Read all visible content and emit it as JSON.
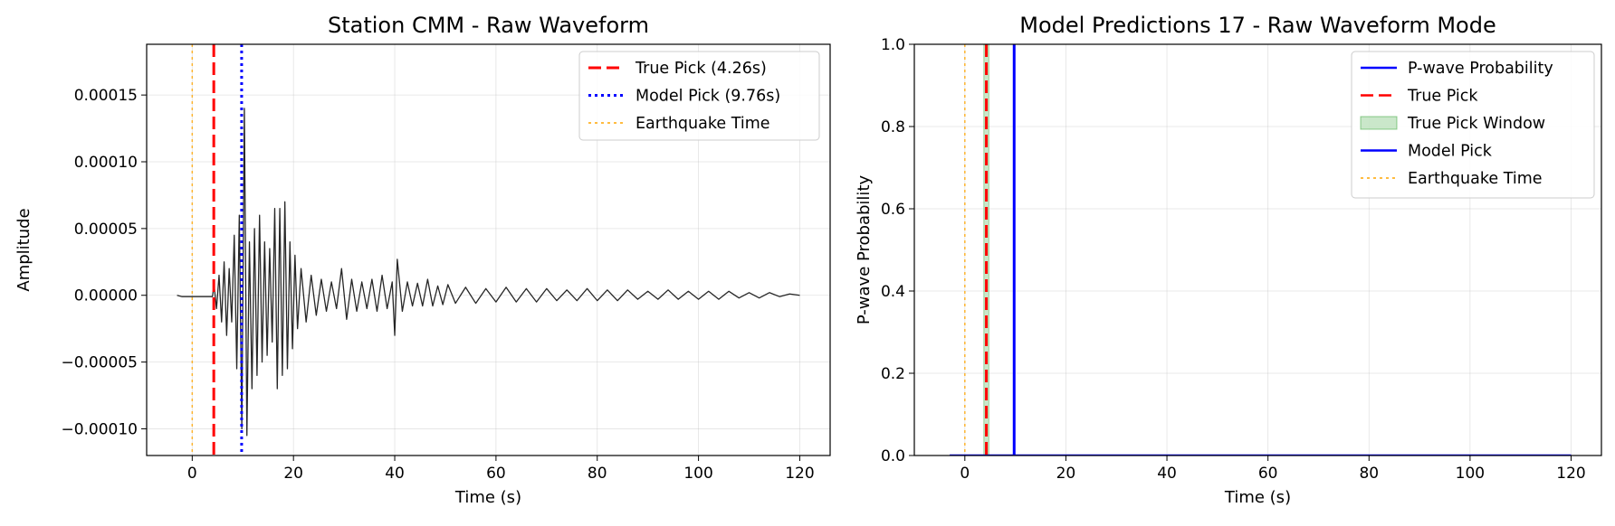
{
  "chart_data": [
    {
      "type": "line",
      "title": "Station CMM - Raw Waveform",
      "xlabel": "Time (s)",
      "ylabel": "Amplitude",
      "xlim": [
        -9,
        126
      ],
      "ylim": [
        -0.00012,
        0.000188
      ],
      "xticks": [
        0,
        20,
        40,
        60,
        80,
        100,
        120
      ],
      "xtick_labels": [
        "0",
        "20",
        "40",
        "60",
        "80",
        "100",
        "120"
      ],
      "yticks": [
        -0.0001,
        -5e-05,
        0,
        5e-05,
        0.0001,
        0.00015
      ],
      "ytick_labels": [
        "−0.00010",
        "−0.00005",
        "0.00000",
        "0.00005",
        "0.00010",
        "0.00015"
      ],
      "grid": true,
      "legend_position": "top-right",
      "series": [
        {
          "name": "",
          "color": "#000000",
          "style": "solid",
          "x": [
            -3,
            -2,
            -1,
            0,
            1,
            2,
            3,
            4,
            4.3,
            4.8,
            5.3,
            5.8,
            6.3,
            6.8,
            7.3,
            7.8,
            8.3,
            8.8,
            9.3,
            9.8,
            10.3,
            10.8,
            11.3,
            11.8,
            12.3,
            12.8,
            13.3,
            13.8,
            14.3,
            14.8,
            15.3,
            15.8,
            16.3,
            16.8,
            17.3,
            17.8,
            18.3,
            18.8,
            19.3,
            19.8,
            20.3,
            20.8,
            21.5,
            22.5,
            23.5,
            24.5,
            25.5,
            26.5,
            27.5,
            28.5,
            29.5,
            30.5,
            31.5,
            32.5,
            33.5,
            34.5,
            35.5,
            36.5,
            37.5,
            38.5,
            39.5,
            40,
            40.5,
            41.5,
            42.5,
            43.5,
            44.5,
            45.5,
            46.5,
            47.5,
            48.5,
            49.5,
            50.5,
            52,
            54,
            56,
            58,
            60,
            62,
            64,
            66,
            68,
            70,
            72,
            74,
            76,
            78,
            80,
            82,
            84,
            86,
            88,
            90,
            92,
            94,
            96,
            98,
            100,
            102,
            104,
            106,
            108,
            110,
            112,
            114,
            116,
            118,
            120
          ],
          "y": [
            0.0,
            -1e-06,
            -1e-06,
            -1e-06,
            -1e-06,
            -1e-06,
            -1e-06,
            -1e-06,
            8e-06,
            -1e-05,
            1.5e-05,
            -2e-05,
            2.5e-05,
            -3e-05,
            2e-05,
            -2e-05,
            4.5e-05,
            -5.5e-05,
            6e-05,
            -0.0001,
            0.00014,
            -0.000105,
            4e-05,
            -7e-05,
            5e-05,
            -6e-05,
            6e-05,
            -5e-05,
            4e-05,
            -4.5e-05,
            3.5e-05,
            -3.5e-05,
            6.5e-05,
            -7e-05,
            6.5e-05,
            -6e-05,
            7e-05,
            -5.5e-05,
            4e-05,
            -4e-05,
            3e-05,
            -2.5e-05,
            2e-05,
            -2e-05,
            1.5e-05,
            -1.5e-05,
            1.2e-05,
            -1.2e-05,
            1e-05,
            -1e-05,
            2e-05,
            -1.8e-05,
            1.2e-05,
            -1.2e-05,
            1e-05,
            -1e-05,
            1.2e-05,
            -1.2e-05,
            1.5e-05,
            -1e-05,
            1e-05,
            -3e-05,
            2.7e-05,
            -1.2e-05,
            1e-05,
            -8e-06,
            9e-06,
            -8e-06,
            1.2e-05,
            -8e-06,
            7e-06,
            -7e-06,
            8e-06,
            -6e-06,
            6e-06,
            -6e-06,
            5e-06,
            -5e-06,
            6e-06,
            -5e-06,
            5e-06,
            -5e-06,
            5e-06,
            -4e-06,
            4e-06,
            -4e-06,
            5e-06,
            -4e-06,
            4e-06,
            -4e-06,
            4e-06,
            -3e-06,
            3e-06,
            -3e-06,
            4e-06,
            -3e-06,
            3e-06,
            -3e-06,
            3e-06,
            -3e-06,
            3e-06,
            -2e-06,
            2e-06,
            -2e-06,
            2e-06,
            -1e-06,
            1e-06,
            0.0
          ]
        }
      ],
      "vlines": [
        {
          "label": "True Pick (4.26s)",
          "x": 4.26,
          "color": "#ff0000",
          "style": "dashed",
          "width": 3
        },
        {
          "label": "Model Pick (9.76s)",
          "x": 9.76,
          "color": "#0000ff",
          "style": "dotted",
          "width": 3
        },
        {
          "label": "Earthquake Time",
          "x": 0,
          "color": "#ffa500",
          "style": "dotted",
          "width": 1.5
        }
      ]
    },
    {
      "type": "line",
      "title": "Model Predictions 17 - Raw Waveform Mode",
      "xlabel": "Time (s)",
      "ylabel": "P-wave Probability",
      "xlim": [
        -10,
        126
      ],
      "ylim": [
        0,
        1
      ],
      "xticks": [
        0,
        20,
        40,
        60,
        80,
        100,
        120
      ],
      "xtick_labels": [
        "0",
        "20",
        "40",
        "60",
        "80",
        "100",
        "120"
      ],
      "yticks": [
        0,
        0.2,
        0.4,
        0.6,
        0.8,
        1.0
      ],
      "ytick_labels": [
        "0.0",
        "0.2",
        "0.4",
        "0.6",
        "0.8",
        "1.0"
      ],
      "grid": true,
      "legend_position": "top-right",
      "series": [
        {
          "name": "P-wave Probability",
          "color": "#0000ff",
          "style": "solid",
          "x": [
            -3,
            120
          ],
          "y": [
            0,
            0
          ]
        }
      ],
      "spans": [
        {
          "label": "True Pick Window",
          "x0": 3.76,
          "x1": 4.76,
          "color": "#2ca02c"
        }
      ],
      "vlines": [
        {
          "label": "True Pick",
          "x": 4.26,
          "color": "#ff0000",
          "style": "dashed",
          "width": 3
        },
        {
          "label": "Model Pick",
          "x": 9.76,
          "color": "#0000ff",
          "style": "solid",
          "width": 3
        },
        {
          "label": "Earthquake Time",
          "x": 0,
          "color": "#ffa500",
          "style": "dotted",
          "width": 1.5
        }
      ],
      "legend_order": [
        "P-wave Probability",
        "True Pick",
        "True Pick Window",
        "Model Pick",
        "Earthquake Time"
      ]
    }
  ]
}
